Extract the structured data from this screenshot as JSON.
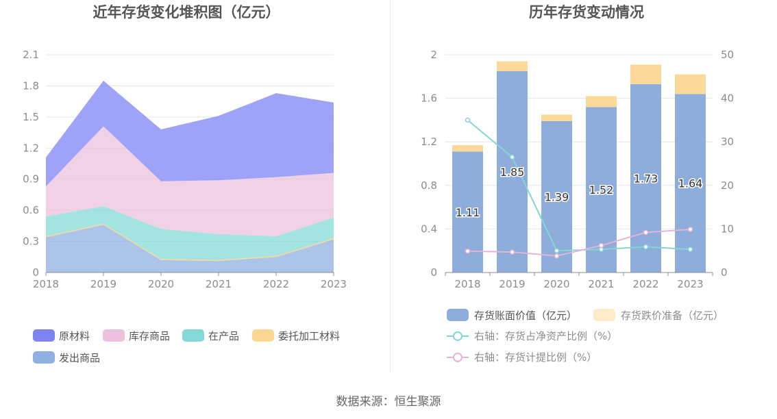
{
  "source_note": "数据来源：恒生聚源",
  "chart_data": [
    {
      "type": "area",
      "stacked": true,
      "title": "近年存货变化堆积图（亿元）",
      "categories": [
        "2018",
        "2019",
        "2020",
        "2021",
        "2022",
        "2023"
      ],
      "yticks": [
        "0",
        "0.3",
        "0.6",
        "0.9",
        "1.2",
        "1.5",
        "1.8",
        "2.1"
      ],
      "ylim": [
        0,
        2.1
      ],
      "series": [
        {
          "name": "发出商品",
          "color": "#8fb0e0",
          "values": [
            0.34,
            0.46,
            0.12,
            0.11,
            0.15,
            0.32
          ]
        },
        {
          "name": "委托加工材料",
          "color": "#fbd792",
          "values": [
            0.01,
            0.01,
            0.01,
            0.01,
            0.01,
            0.01
          ]
        },
        {
          "name": "在产品",
          "color": "#84d9d6",
          "values": [
            0.19,
            0.17,
            0.29,
            0.25,
            0.19,
            0.2
          ]
        },
        {
          "name": "库存商品",
          "color": "#ecc1de",
          "values": [
            0.29,
            0.77,
            0.46,
            0.52,
            0.57,
            0.43
          ]
        },
        {
          "name": "原材料",
          "color": "#7f84f5",
          "values": [
            0.28,
            0.44,
            0.5,
            0.62,
            0.81,
            0.68
          ]
        }
      ],
      "legend": [
        {
          "name": "原材料",
          "color": "#7f84f5"
        },
        {
          "name": "库存商品",
          "color": "#ecc1de"
        },
        {
          "name": "在产品",
          "color": "#84d9d6"
        },
        {
          "name": "委托加工材料",
          "color": "#fbd792"
        },
        {
          "name": "发出商品",
          "color": "#8fb0e0"
        }
      ],
      "legend_position": "bottom",
      "grid": true
    },
    {
      "type": "bar",
      "stacked": true,
      "title": "历年存货变动情况",
      "categories": [
        "2018",
        "2019",
        "2020",
        "2021",
        "2022",
        "2023"
      ],
      "yticks_left": [
        "0",
        "0.4",
        "0.8",
        "1.2",
        "1.6",
        "2"
      ],
      "yticks_right": [
        "0",
        "10",
        "20",
        "30",
        "40",
        "50"
      ],
      "ylim_left": [
        0,
        2
      ],
      "ylim_right": [
        0,
        50
      ],
      "series": [
        {
          "name": "存货账面价值（亿元）",
          "color": "#8eaddb",
          "values": [
            1.11,
            1.85,
            1.39,
            1.52,
            1.73,
            1.64
          ],
          "labels": [
            "1.11",
            "1.85",
            "1.39",
            "1.52",
            "1.73",
            "1.64"
          ]
        },
        {
          "name": "存货跌价准备（亿元）",
          "color": "#fbd99a",
          "values": [
            0.06,
            0.09,
            0.06,
            0.1,
            0.18,
            0.18
          ]
        }
      ],
      "line_series": [
        {
          "name": "右轴：存货占净资产比例（%）",
          "color": "#84d6d4",
          "axis": "right",
          "values": [
            35,
            26.5,
            5,
            5.3,
            5.9,
            5.3
          ]
        },
        {
          "name": "右轴：存货计提比例（%）",
          "color": "#e3b4d8",
          "axis": "right",
          "values": [
            4.9,
            4.7,
            3.8,
            6.2,
            9.2,
            9.9
          ]
        }
      ],
      "legend_position": "bottom",
      "grid": true
    }
  ]
}
